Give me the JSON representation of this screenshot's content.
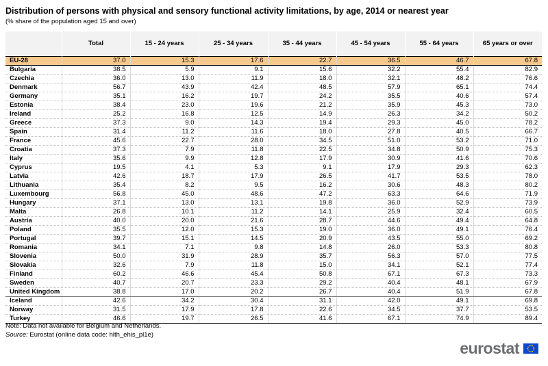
{
  "header": {
    "title": "Distribution of persons with physical and sensory functional activity limitations, by age, 2014 or nearest year",
    "subtitle": "(% share of the population aged 15 and over)"
  },
  "table": {
    "columns": [
      "",
      "Total",
      "15 - 24 years",
      "25 - 34 years",
      "35 - 44 years",
      "45 - 54 years",
      "55 - 64 years",
      "65 years or over"
    ],
    "rows": [
      {
        "country": "EU-28",
        "values": [
          "37.0",
          "15.3",
          "17.6",
          "22.7",
          "36.5",
          "46.7",
          "67.8"
        ]
      },
      {
        "country": "Bulgaria",
        "values": [
          "38.5",
          "5.9",
          "9.1",
          "15.6",
          "32.2",
          "55.4",
          "82.9"
        ]
      },
      {
        "country": "Czechia",
        "values": [
          "36.0",
          "13.0",
          "11.9",
          "18.0",
          "32.1",
          "48.2",
          "76.6"
        ]
      },
      {
        "country": "Denmark",
        "values": [
          "56.7",
          "43.9",
          "42.4",
          "48.5",
          "57.9",
          "65.1",
          "74.4"
        ]
      },
      {
        "country": "Germany",
        "values": [
          "35.1",
          "16.2",
          "19.7",
          "24.2",
          "35.5",
          "40.6",
          "57.4"
        ]
      },
      {
        "country": "Estonia",
        "values": [
          "38.4",
          "23.0",
          "19.6",
          "21.2",
          "35.9",
          "45.3",
          "73.0"
        ]
      },
      {
        "country": "Ireland",
        "values": [
          "25.2",
          "16.8",
          "12.5",
          "14.9",
          "26.3",
          "34.2",
          "50.2"
        ]
      },
      {
        "country": "Greece",
        "values": [
          "37.3",
          "9.0",
          "14.3",
          "19.4",
          "29.3",
          "45.0",
          "78.2"
        ]
      },
      {
        "country": "Spain",
        "values": [
          "31.4",
          "11.2",
          "11.6",
          "18.0",
          "27.8",
          "40.5",
          "66.7"
        ]
      },
      {
        "country": "France",
        "values": [
          "45.6",
          "22.7",
          "28.0",
          "34.5",
          "51.0",
          "53.2",
          "71.0"
        ]
      },
      {
        "country": "Croatia",
        "values": [
          "37.3",
          "7.9",
          "11.8",
          "22.5",
          "34.8",
          "50.9",
          "75.3"
        ]
      },
      {
        "country": "Italy",
        "values": [
          "35.6",
          "9.9",
          "12.8",
          "17.9",
          "30.9",
          "41.6",
          "70.6"
        ]
      },
      {
        "country": "Cyprus",
        "values": [
          "19.5",
          "4.1",
          "5.3",
          "9.1",
          "17.9",
          "29.3",
          "62.3"
        ]
      },
      {
        "country": "Latvia",
        "values": [
          "42.6",
          "18.7",
          "17.9",
          "26.5",
          "41.7",
          "53.5",
          "78.0"
        ]
      },
      {
        "country": "Lithuania",
        "values": [
          "35.4",
          "8.2",
          "9.5",
          "16.2",
          "30.6",
          "48.3",
          "80.2"
        ]
      },
      {
        "country": "Luxembourg",
        "values": [
          "56.8",
          "45.0",
          "48.6",
          "47.2",
          "63.3",
          "64.6",
          "71.9"
        ]
      },
      {
        "country": "Hungary",
        "values": [
          "37.1",
          "13.0",
          "13.1",
          "19.8",
          "36.0",
          "52.9",
          "73.9"
        ]
      },
      {
        "country": "Malta",
        "values": [
          "26.8",
          "10.1",
          "11.2",
          "14.1",
          "25.9",
          "32.4",
          "60.5"
        ]
      },
      {
        "country": "Austria",
        "values": [
          "40.0",
          "20.0",
          "21.6",
          "28.7",
          "44.6",
          "49.4",
          "64.8"
        ]
      },
      {
        "country": "Poland",
        "values": [
          "35.5",
          "12.0",
          "15.3",
          "19.0",
          "36.0",
          "49.1",
          "76.4"
        ]
      },
      {
        "country": "Portugal",
        "values": [
          "39.7",
          "15.1",
          "14.5",
          "20.9",
          "43.5",
          "55.0",
          "69.2"
        ]
      },
      {
        "country": "Romania",
        "values": [
          "34.1",
          "7.1",
          "9.8",
          "14.8",
          "26.0",
          "53.3",
          "80.8"
        ]
      },
      {
        "country": "Slovenia",
        "values": [
          "50.0",
          "31.9",
          "28.9",
          "35.7",
          "56.3",
          "57.0",
          "77.5"
        ]
      },
      {
        "country": "Slovakia",
        "values": [
          "32.6",
          "7.9",
          "11.8",
          "15.0",
          "34.1",
          "52.1",
          "77.4"
        ]
      },
      {
        "country": "Finland",
        "values": [
          "60.2",
          "46.6",
          "45.4",
          "50.8",
          "67.1",
          "67.3",
          "73.3"
        ]
      },
      {
        "country": "Sweden",
        "values": [
          "40.7",
          "20.7",
          "23.3",
          "29.2",
          "40.4",
          "48.1",
          "67.9"
        ]
      },
      {
        "country": "United Kingdom",
        "values": [
          "38.8",
          "17.0",
          "20.2",
          "26.7",
          "40.4",
          "51.9",
          "67.8"
        ]
      },
      {
        "country": "Iceland",
        "values": [
          "42.6",
          "34.2",
          "30.4",
          "31.1",
          "42.0",
          "49.1",
          "69.8"
        ]
      },
      {
        "country": "Norway",
        "values": [
          "31.5",
          "17.9",
          "17.8",
          "22.6",
          "34.5",
          "37.7",
          "53.5"
        ]
      },
      {
        "country": "Turkey",
        "values": [
          "46.6",
          "19.7",
          "26.5",
          "41.6",
          "67.1",
          "74.9",
          "89.4"
        ]
      }
    ]
  },
  "notes": {
    "note": "Note: Data not available for Belgium and Netherlands.",
    "source_label": "Source:",
    "source_text": "Eurostat (online data code: hlth_ehis_pl1e)"
  },
  "logo": {
    "wordmark": "eurostat",
    "flag_icon": "eu-flag-icon",
    "flag_color": "#0e47cb",
    "star_color": "#ffdd00"
  },
  "colors": {
    "highlight_row": "#f8c98c",
    "header_bg": "#f2f2f2"
  }
}
